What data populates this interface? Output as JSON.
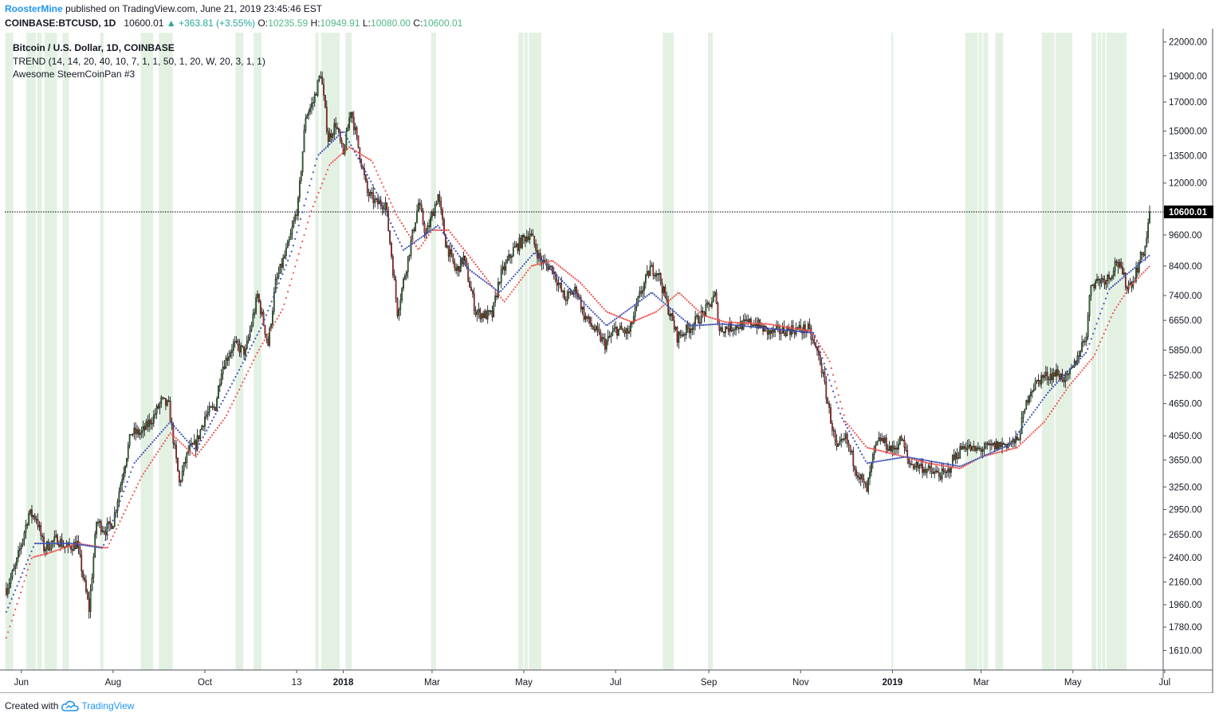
{
  "header": {
    "user": "RoosterMine",
    "published_text": "published on TradingView.com, June 21, 2019 23:45:46 EST",
    "symbol": "COINBASE:BTCUSD, 1D",
    "last": "10600.01",
    "change": "▲ +363.81 (+3.55%)",
    "o_label": "O:",
    "o": "10235.59",
    "h_label": "H:",
    "h": "10949.91",
    "l_label": "L:",
    "l": "10080.00",
    "c_label": "C:",
    "c": "10600.01"
  },
  "legend": {
    "line1": "Bitcoin / U.S. Dollar, 1D, COINBASE",
    "line2": "TREND (14, 14, 20, 40, 10, 7, 1, 1, 50, 1, 20, W, 20, 3, 1, 1)",
    "line3": "Awesome SteemCoinPan #3"
  },
  "footer": {
    "created_with": "Created with",
    "brand": "TradingView"
  },
  "colors": {
    "up": "#2e7d32",
    "down": "#d32f2f",
    "wick": "#000000",
    "band": "#e3f1e3",
    "trend_red": "#ef5350",
    "trend_blue": "#3f51b5",
    "price_tag": "#000000",
    "axis_text": "#131722"
  },
  "chart_data": {
    "type": "candlestick",
    "y_scale": "log",
    "ylim": [
      1480,
      22900
    ],
    "y_ticks": [
      22000,
      19000,
      17000,
      15000,
      13500,
      12000,
      10600,
      9600,
      8400,
      7400,
      6650,
      5850,
      5250,
      4650,
      4050,
      3650,
      3250,
      2950,
      2650,
      2400,
      2160,
      1960,
      1780,
      1610
    ],
    "y_tick_labels": [
      "22000.00",
      "19000.00",
      "17000.00",
      "15000.00",
      "13500.00",
      "12000.00",
      "10600.01",
      "9600.00",
      "8400.00",
      "7400.00",
      "6650.00",
      "5850.00",
      "5250.00",
      "4650.00",
      "4050.00",
      "3650.00",
      "3250.00",
      "2950.00",
      "2650.00",
      "2400.00",
      "2160.00",
      "1960.00",
      "1780.00",
      "1610.00"
    ],
    "x_start": "2017-05-21",
    "x_end": "2019-06-30",
    "x_ticks": [
      {
        "date": "2017-06-01",
        "label": "Jun",
        "bold": false
      },
      {
        "date": "2017-08-01",
        "label": "Aug",
        "bold": false
      },
      {
        "date": "2017-10-01",
        "label": "Oct",
        "bold": false
      },
      {
        "date": "2017-12-01",
        "label": "13",
        "bold": false
      },
      {
        "date": "2018-01-01",
        "label": "2018",
        "bold": true
      },
      {
        "date": "2018-03-01",
        "label": "Mar",
        "bold": false
      },
      {
        "date": "2018-05-01",
        "label": "May",
        "bold": false
      },
      {
        "date": "2018-07-01",
        "label": "Jul",
        "bold": false
      },
      {
        "date": "2018-09-01",
        "label": "Sep",
        "bold": false
      },
      {
        "date": "2018-11-01",
        "label": "Nov",
        "bold": false
      },
      {
        "date": "2019-01-01",
        "label": "2019",
        "bold": true
      },
      {
        "date": "2019-03-01",
        "label": "Mar",
        "bold": false
      },
      {
        "date": "2019-05-01",
        "label": "May",
        "bold": false
      },
      {
        "date": "2019-07-01",
        "label": "Jul",
        "bold": false
      }
    ],
    "last_price": 10600.01,
    "last_price_label": "10600.01",
    "price_path": [
      [
        "2017-05-22",
        2100
      ],
      [
        "2017-05-28",
        2300
      ],
      [
        "2017-06-06",
        2900
      ],
      [
        "2017-06-11",
        2850
      ],
      [
        "2017-06-16",
        2500
      ],
      [
        "2017-06-25",
        2600
      ],
      [
        "2017-07-01",
        2500
      ],
      [
        "2017-07-08",
        2550
      ],
      [
        "2017-07-16",
        1920
      ],
      [
        "2017-07-21",
        2800
      ],
      [
        "2017-07-27",
        2700
      ],
      [
        "2017-08-01",
        2800
      ],
      [
        "2017-08-06",
        3300
      ],
      [
        "2017-08-13",
        4100
      ],
      [
        "2017-08-20",
        4100
      ],
      [
        "2017-08-28",
        4400
      ],
      [
        "2017-09-02",
        4700
      ],
      [
        "2017-09-07",
        4600
      ],
      [
        "2017-09-14",
        3300
      ],
      [
        "2017-09-20",
        3800
      ],
      [
        "2017-09-25",
        3900
      ],
      [
        "2017-10-01",
        4400
      ],
      [
        "2017-10-08",
        4600
      ],
      [
        "2017-10-12",
        5400
      ],
      [
        "2017-10-20",
        6000
      ],
      [
        "2017-10-28",
        5800
      ],
      [
        "2017-11-05",
        7400
      ],
      [
        "2017-11-12",
        6000
      ],
      [
        "2017-11-17",
        7800
      ],
      [
        "2017-11-26",
        9300
      ],
      [
        "2017-12-02",
        11000
      ],
      [
        "2017-12-07",
        16000
      ],
      [
        "2017-12-12",
        17000
      ],
      [
        "2017-12-17",
        19300
      ],
      [
        "2017-12-22",
        14500
      ],
      [
        "2017-12-27",
        15500
      ],
      [
        "2018-01-01",
        13500
      ],
      [
        "2018-01-06",
        16500
      ],
      [
        "2018-01-11",
        14000
      ],
      [
        "2018-01-17",
        11500
      ],
      [
        "2018-01-23",
        11000
      ],
      [
        "2018-01-29",
        11000
      ],
      [
        "2018-02-02",
        8800
      ],
      [
        "2018-02-06",
        6900
      ],
      [
        "2018-02-12",
        8400
      ],
      [
        "2018-02-20",
        11000
      ],
      [
        "2018-02-25",
        9600
      ],
      [
        "2018-03-05",
        11400
      ],
      [
        "2018-03-10",
        9300
      ],
      [
        "2018-03-17",
        8200
      ],
      [
        "2018-03-22",
        8700
      ],
      [
        "2018-03-30",
        6900
      ],
      [
        "2018-04-05",
        6800
      ],
      [
        "2018-04-10",
        6800
      ],
      [
        "2018-04-15",
        8000
      ],
      [
        "2018-04-24",
        9000
      ],
      [
        "2018-05-05",
        9700
      ],
      [
        "2018-05-12",
        8600
      ],
      [
        "2018-05-20",
        8300
      ],
      [
        "2018-05-28",
        7300
      ],
      [
        "2018-06-05",
        7600
      ],
      [
        "2018-06-10",
        6800
      ],
      [
        "2018-06-15",
        6500
      ],
      [
        "2018-06-24",
        6000
      ],
      [
        "2018-07-01",
        6400
      ],
      [
        "2018-07-10",
        6300
      ],
      [
        "2018-07-17",
        7400
      ],
      [
        "2018-07-24",
        8300
      ],
      [
        "2018-07-29",
        8200
      ],
      [
        "2018-08-05",
        7000
      ],
      [
        "2018-08-11",
        6200
      ],
      [
        "2018-08-18",
        6400
      ],
      [
        "2018-08-25",
        6700
      ],
      [
        "2018-08-31",
        7000
      ],
      [
        "2018-09-05",
        7400
      ],
      [
        "2018-09-08",
        6400
      ],
      [
        "2018-09-20",
        6500
      ],
      [
        "2018-10-01",
        6600
      ],
      [
        "2018-10-11",
        6300
      ],
      [
        "2018-10-25",
        6400
      ],
      [
        "2018-11-06",
        6400
      ],
      [
        "2018-11-14",
        5600
      ],
      [
        "2018-11-20",
        4500
      ],
      [
        "2018-11-25",
        3800
      ],
      [
        "2018-12-01",
        4000
      ],
      [
        "2018-12-08",
        3500
      ],
      [
        "2018-12-15",
        3200
      ],
      [
        "2018-12-20",
        3800
      ],
      [
        "2018-12-24",
        4000
      ],
      [
        "2019-01-01",
        3800
      ],
      [
        "2019-01-07",
        4000
      ],
      [
        "2019-01-12",
        3600
      ],
      [
        "2019-01-20",
        3550
      ],
      [
        "2019-01-28",
        3450
      ],
      [
        "2019-02-06",
        3420
      ],
      [
        "2019-02-10",
        3650
      ],
      [
        "2019-02-18",
        3900
      ],
      [
        "2019-02-24",
        3800
      ],
      [
        "2019-03-06",
        3850
      ],
      [
        "2019-03-15",
        3900
      ],
      [
        "2019-03-25",
        3950
      ],
      [
        "2019-04-02",
        4900
      ],
      [
        "2019-04-10",
        5200
      ],
      [
        "2019-04-20",
        5300
      ],
      [
        "2019-04-27",
        5150
      ],
      [
        "2019-05-02",
        5500
      ],
      [
        "2019-05-10",
        6300
      ],
      [
        "2019-05-13",
        7800
      ],
      [
        "2019-05-18",
        7900
      ],
      [
        "2019-05-25",
        8000
      ],
      [
        "2019-05-30",
        8600
      ],
      [
        "2019-06-03",
        8100
      ],
      [
        "2019-06-06",
        7700
      ],
      [
        "2019-06-10",
        7900
      ],
      [
        "2019-06-15",
        8700
      ],
      [
        "2019-06-18",
        9100
      ],
      [
        "2019-06-21",
        10600
      ]
    ],
    "red_trend_path": [
      [
        "2017-05-22",
        1700
      ],
      [
        "2017-06-08",
        2400
      ],
      [
        "2017-06-20",
        2450
      ],
      [
        "2017-07-08",
        2550
      ],
      [
        "2017-07-28",
        2500
      ],
      [
        "2017-08-20",
        3400
      ],
      [
        "2017-09-08",
        4100
      ],
      [
        "2017-09-25",
        3700
      ],
      [
        "2017-10-15",
        4400
      ],
      [
        "2017-11-05",
        5800
      ],
      [
        "2017-11-22",
        7000
      ],
      [
        "2017-12-10",
        10500
      ],
      [
        "2017-12-23",
        13000
      ],
      [
        "2018-01-05",
        14000
      ],
      [
        "2018-01-20",
        13200
      ],
      [
        "2018-02-05",
        10500
      ],
      [
        "2018-02-20",
        9000
      ],
      [
        "2018-03-01",
        9800
      ],
      [
        "2018-03-12",
        9800
      ],
      [
        "2018-03-28",
        8600
      ],
      [
        "2018-04-18",
        7200
      ],
      [
        "2018-05-06",
        8400
      ],
      [
        "2018-05-20",
        8600
      ],
      [
        "2018-06-08",
        7800
      ],
      [
        "2018-06-25",
        6900
      ],
      [
        "2018-07-12",
        6600
      ],
      [
        "2018-07-28",
        6900
      ],
      [
        "2018-08-12",
        7500
      ],
      [
        "2018-08-28",
        6800
      ],
      [
        "2018-09-12",
        6600
      ],
      [
        "2018-10-10",
        6550
      ],
      [
        "2018-11-08",
        6350
      ],
      [
        "2018-11-20",
        5600
      ],
      [
        "2018-12-01",
        4300
      ],
      [
        "2018-12-15",
        3850
      ],
      [
        "2019-01-01",
        3750
      ],
      [
        "2019-01-25",
        3600
      ],
      [
        "2019-02-15",
        3520
      ],
      [
        "2019-03-01",
        3700
      ],
      [
        "2019-03-25",
        3850
      ],
      [
        "2019-04-12",
        4300
      ],
      [
        "2019-04-28",
        5000
      ],
      [
        "2019-05-15",
        5700
      ],
      [
        "2019-05-28",
        6900
      ],
      [
        "2019-06-08",
        7700
      ],
      [
        "2019-06-21",
        8400
      ]
    ],
    "blue_trend_path": [
      [
        "2017-05-22",
        1900
      ],
      [
        "2017-06-10",
        2550
      ],
      [
        "2017-07-05",
        2550
      ],
      [
        "2017-07-25",
        2500
      ],
      [
        "2017-08-15",
        3600
      ],
      [
        "2017-09-08",
        4300
      ],
      [
        "2017-09-25",
        3800
      ],
      [
        "2017-10-18",
        5000
      ],
      [
        "2017-11-08",
        6500
      ],
      [
        "2017-11-28",
        9000
      ],
      [
        "2017-12-15",
        13500
      ],
      [
        "2018-01-01",
        15000
      ],
      [
        "2018-01-20",
        12000
      ],
      [
        "2018-02-10",
        9000
      ],
      [
        "2018-03-05",
        10000
      ],
      [
        "2018-03-25",
        8300
      ],
      [
        "2018-04-15",
        7500
      ],
      [
        "2018-05-08",
        8900
      ],
      [
        "2018-06-01",
        7600
      ],
      [
        "2018-06-25",
        6500
      ],
      [
        "2018-07-25",
        7500
      ],
      [
        "2018-08-20",
        6500
      ],
      [
        "2018-09-10",
        6550
      ],
      [
        "2018-11-10",
        6300
      ],
      [
        "2018-11-28",
        4400
      ],
      [
        "2018-12-15",
        3600
      ],
      [
        "2019-01-10",
        3700
      ],
      [
        "2019-02-15",
        3550
      ],
      [
        "2019-03-20",
        3900
      ],
      [
        "2019-04-15",
        4900
      ],
      [
        "2019-05-10",
        5800
      ],
      [
        "2019-05-25",
        7600
      ],
      [
        "2019-06-21",
        8800
      ]
    ],
    "highlight_bands": [
      [
        "2017-05-22",
        "2017-05-26"
      ],
      [
        "2017-06-05",
        "2017-06-08"
      ],
      [
        "2017-06-09",
        "2017-06-10"
      ],
      [
        "2017-06-12",
        "2017-06-14"
      ],
      [
        "2017-06-17",
        "2017-06-24"
      ],
      [
        "2017-06-29",
        "2017-07-02"
      ],
      [
        "2017-07-24",
        "2017-07-25"
      ],
      [
        "2017-08-20",
        "2017-08-27"
      ],
      [
        "2017-09-01",
        "2017-09-09"
      ],
      [
        "2017-10-22",
        "2017-10-26"
      ],
      [
        "2017-11-03",
        "2017-11-07"
      ],
      [
        "2017-12-14",
        "2017-12-15"
      ],
      [
        "2017-12-18",
        "2017-12-29"
      ],
      [
        "2018-01-03",
        "2018-01-06"
      ],
      [
        "2018-03-01",
        "2018-03-03"
      ],
      [
        "2018-04-28",
        "2018-04-30"
      ],
      [
        "2018-05-02",
        "2018-05-03"
      ],
      [
        "2018-05-05",
        "2018-05-12"
      ],
      [
        "2018-08-02",
        "2018-08-08"
      ],
      [
        "2018-09-01",
        "2018-09-03"
      ],
      [
        "2019-01-01",
        "2019-01-01"
      ],
      [
        "2019-02-19",
        "2019-02-26"
      ],
      [
        "2019-02-28",
        "2019-03-01"
      ],
      [
        "2019-03-03",
        "2019-03-05"
      ],
      [
        "2019-03-11",
        "2019-03-15"
      ],
      [
        "2019-04-11",
        "2019-04-18"
      ],
      [
        "2019-04-20",
        "2019-04-30"
      ],
      [
        "2019-05-14",
        "2019-05-16"
      ],
      [
        "2019-05-18",
        "2019-05-19"
      ],
      [
        "2019-05-21",
        "2019-05-22"
      ],
      [
        "2019-05-24",
        "2019-06-05"
      ]
    ]
  }
}
